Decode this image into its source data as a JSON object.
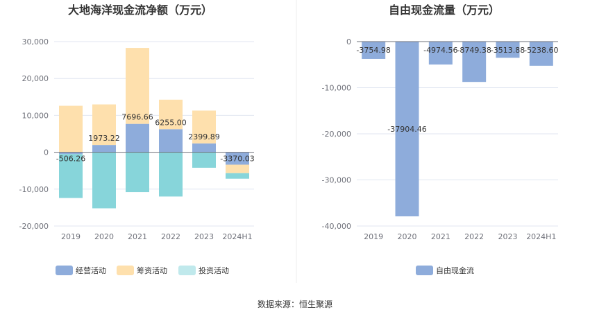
{
  "source": "数据来源：恒生聚源",
  "colors": {
    "operating": "#8eacdb",
    "financing": "#fee0ad",
    "investing": "#87d5da",
    "investing_legend": "#c0e9ec",
    "fcf": "#8eacdb",
    "grid": "#e0e6f1",
    "axis": "#6e7079",
    "divider": "#eeeeee"
  },
  "chart_data": [
    {
      "type": "bar",
      "stacked": true,
      "title": "大地海洋现金流净额（万元）",
      "categories": [
        "2019",
        "2020",
        "2021",
        "2022",
        "2023",
        "2024H1"
      ],
      "yticks": [
        "30,000",
        "20,000",
        "10,000",
        "0",
        "-10,000",
        "-20,000"
      ],
      "ylim": [
        -20000,
        30000
      ],
      "series": [
        {
          "name": "经营活动",
          "key": "operating",
          "values": [
            -506.26,
            1973.22,
            7696.66,
            6255.0,
            2399.89,
            -3370.03
          ]
        },
        {
          "name": "筹资活动",
          "key": "financing",
          "values": [
            12600,
            11000,
            20600,
            8000,
            8900,
            -2300
          ]
        },
        {
          "name": "投资活动",
          "key": "investing",
          "values": [
            -11900,
            -15200,
            -10800,
            -12000,
            -4200,
            -1500
          ]
        }
      ],
      "data_labels": [
        "-506.26",
        "1973.22",
        "7696.66",
        "6255.00",
        "2399.89",
        "-3370.03"
      ],
      "legend": [
        "经营活动",
        "筹资活动",
        "投资活动"
      ],
      "legend_position": "bottom-center",
      "grid": true
    },
    {
      "type": "bar",
      "title": "自由现金流量（万元）",
      "categories": [
        "2019",
        "2020",
        "2021",
        "2022",
        "2023",
        "2024H1"
      ],
      "yticks": [
        "0",
        "-10,000",
        "-20,000",
        "-30,000",
        "-40,000"
      ],
      "ylim": [
        -40000,
        0
      ],
      "series": [
        {
          "name": "自由现金流",
          "key": "fcf",
          "values": [
            -3754.98,
            -37904.46,
            -4974.56,
            -8749.38,
            -3513.88,
            -5238.6
          ]
        }
      ],
      "data_labels": [
        "-3754.98",
        "-37904.46",
        "-4974.56",
        "-8749.38",
        "-3513.88",
        "-5238.60"
      ],
      "legend": [
        "自由现金流"
      ],
      "legend_position": "bottom-center",
      "grid": true
    }
  ]
}
